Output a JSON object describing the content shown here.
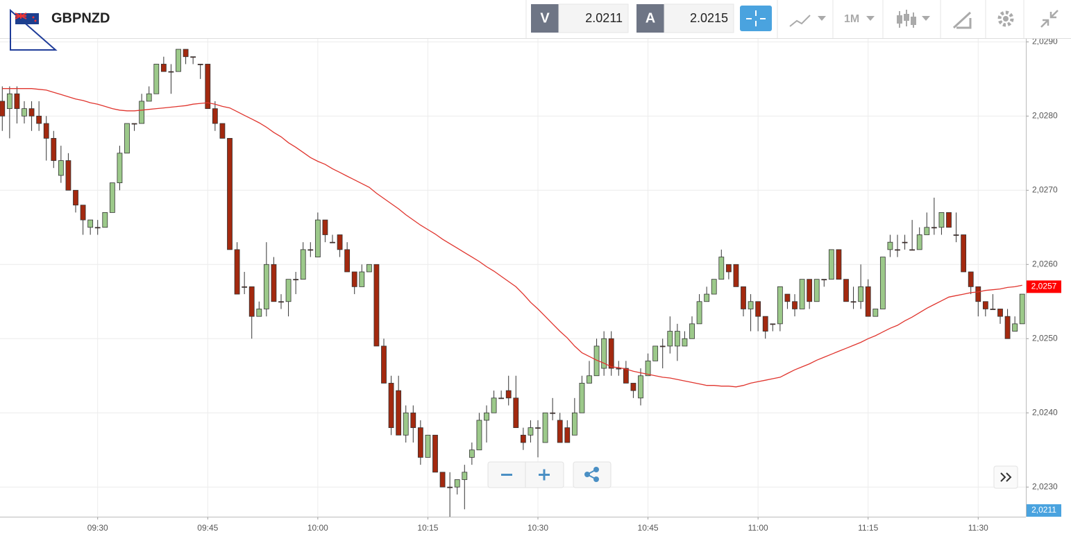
{
  "header": {
    "symbol": "GBPNZD",
    "bid_label": "V",
    "bid": 2.0211,
    "ask_label": "A",
    "ask": 2.0215,
    "timeframe": "1M"
  },
  "chart_data": {
    "type": "candlestick",
    "categories": [
      null,
      null,
      null,
      null,
      null,
      null,
      null,
      null,
      null,
      null,
      null,
      null,
      null,
      "09:30",
      null,
      null,
      null,
      null,
      null,
      null,
      null,
      null,
      null,
      null,
      null,
      null,
      null,
      null,
      "09:45",
      null,
      null,
      null,
      null,
      null,
      null,
      null,
      null,
      null,
      null,
      null,
      null,
      null,
      null,
      "10:00",
      null,
      null,
      null,
      null,
      null,
      null,
      null,
      null,
      null,
      null,
      null,
      null,
      null,
      null,
      "10:15",
      null,
      null,
      null,
      null,
      null,
      null,
      null,
      null,
      null,
      null,
      null,
      null,
      null,
      null,
      "10:30",
      null,
      null,
      null,
      null,
      null,
      null,
      null,
      null,
      null,
      null,
      null,
      null,
      null,
      null,
      "10:45",
      null,
      null,
      null,
      null,
      null,
      null,
      null,
      null,
      null,
      null,
      null,
      null,
      null,
      null,
      "11:00",
      null,
      null,
      null,
      null,
      null,
      null,
      null,
      null,
      null,
      null,
      null,
      null,
      null,
      null,
      "11:15",
      null,
      null,
      null,
      null,
      null,
      null,
      null,
      null,
      null,
      null,
      null,
      null,
      null,
      null,
      "11:30",
      null,
      null,
      null,
      null,
      null,
      null
    ],
    "open": [
      2.0282,
      2.0281,
      2.0283,
      2.028,
      2.0281,
      2.028,
      2.0279,
      2.0277,
      2.0272,
      2.0274,
      2.027,
      2.0268,
      2.0265,
      2.0265,
      2.0265,
      2.0267,
      2.0271,
      2.0275,
      2.0279,
      2.0279,
      2.0282,
      2.0283,
      2.0287,
      2.0286,
      2.0286,
      2.0289,
      2.0288,
      2.0287,
      2.0287,
      2.0281,
      2.0279,
      2.0277,
      2.0262,
      2.0257,
      2.0257,
      2.0253,
      2.0254,
      2.026,
      2.0255,
      2.0255,
      2.0258,
      2.0258,
      2.0262,
      2.0261,
      2.0266,
      2.0263,
      2.0264,
      2.0262,
      2.0259,
      2.0257,
      2.0259,
      2.026,
      2.0249,
      2.0244,
      2.0243,
      2.0237,
      2.024,
      2.0238,
      2.0234,
      2.0237,
      2.0232,
      2.023,
      2.023,
      2.0231,
      2.0234,
      2.0235,
      2.0239,
      2.024,
      2.0242,
      2.0243,
      2.0242,
      2.0237,
      2.0237,
      2.0238,
      2.0236,
      2.024,
      2.0239,
      2.0238,
      2.0237,
      2.024,
      2.0244,
      2.0245,
      2.0246,
      2.025,
      2.0246,
      2.0246,
      2.0244,
      2.0242,
      2.0245,
      2.0247,
      2.0249,
      2.0249,
      2.0249,
      2.0249,
      2.025,
      2.0252,
      2.0255,
      2.0256,
      2.0258,
      2.026,
      2.026,
      2.0257,
      2.0254,
      2.0255,
      2.0253,
      2.0252,
      2.0252,
      2.0256,
      2.0255,
      2.0254,
      2.0258,
      2.0255,
      2.0258,
      2.0258,
      2.0262,
      2.0258,
      2.0255,
      2.0255,
      2.0257,
      2.0253,
      2.0254,
      2.0262,
      2.0262,
      2.0263,
      2.0262,
      2.0262,
      2.0264,
      2.0265,
      2.0265,
      2.0267,
      2.0264,
      2.0264,
      2.0259,
      2.0257,
      2.0255,
      2.0254,
      2.0254,
      2.0253,
      2.0251,
      2.0252
    ],
    "high": [
      2.0284,
      2.0284,
      2.0284,
      2.0282,
      2.0282,
      2.0282,
      2.028,
      2.0278,
      2.0276,
      2.0275,
      2.027,
      2.0268,
      2.0266,
      2.0266,
      2.0267,
      2.0271,
      2.0276,
      2.0279,
      2.0279,
      2.0283,
      2.0284,
      2.0287,
      2.0288,
      2.0287,
      2.0289,
      2.0289,
      2.0288,
      2.0287,
      2.0287,
      2.0282,
      2.0279,
      2.0277,
      2.0263,
      2.0259,
      2.0257,
      2.0255,
      2.0263,
      2.0261,
      2.0256,
      2.0258,
      2.0259,
      2.0263,
      2.0263,
      2.0267,
      2.0266,
      2.0264,
      2.0264,
      2.0263,
      2.0259,
      2.026,
      2.026,
      2.026,
      2.025,
      2.0245,
      2.0245,
      2.0241,
      2.0241,
      2.0239,
      2.0237,
      2.0237,
      2.0232,
      2.0232,
      2.0231,
      2.0233,
      2.0236,
      2.024,
      2.0241,
      2.0243,
      2.0243,
      2.0245,
      2.0245,
      2.0238,
      2.0239,
      2.0239,
      2.024,
      2.0242,
      2.024,
      2.0239,
      2.0242,
      2.0245,
      2.0247,
      2.025,
      2.0251,
      2.0251,
      2.0247,
      2.0247,
      2.0244,
      2.0246,
      2.0248,
      2.0249,
      2.025,
      2.0253,
      2.0252,
      2.0251,
      2.0253,
      2.0256,
      2.0257,
      2.0258,
      2.0262,
      2.026,
      2.026,
      2.0257,
      2.0256,
      2.0255,
      2.0253,
      2.0252,
      2.0257,
      2.0256,
      2.0256,
      2.0258,
      2.0258,
      2.0258,
      2.0258,
      2.0262,
      2.0262,
      2.0258,
      2.0257,
      2.026,
      2.0258,
      2.0254,
      2.0261,
      2.0264,
      2.0264,
      2.0264,
      2.0266,
      2.0265,
      2.0267,
      2.0269,
      2.0267,
      2.0267,
      2.0267,
      2.0264,
      2.0259,
      2.0257,
      2.0255,
      2.0256,
      2.0254,
      2.0254,
      2.0253,
      2.0256
    ],
    "low": [
      2.0278,
      2.0277,
      2.0279,
      2.0279,
      2.0278,
      2.0278,
      2.0274,
      2.0273,
      2.0271,
      2.027,
      2.0267,
      2.0264,
      2.0264,
      2.0264,
      2.0265,
      2.0267,
      2.027,
      2.0275,
      2.0278,
      2.0279,
      2.0282,
      2.0283,
      2.0286,
      2.0283,
      2.0286,
      2.0287,
      2.0287,
      2.0285,
      2.0281,
      2.0278,
      2.0277,
      2.0262,
      2.0256,
      2.0256,
      2.025,
      2.0253,
      2.0253,
      2.0255,
      2.0254,
      2.0253,
      2.0256,
      2.0258,
      2.0261,
      2.0261,
      2.0263,
      2.0263,
      2.0261,
      2.0259,
      2.0256,
      2.0257,
      2.0259,
      2.0249,
      2.0244,
      2.0237,
      2.0237,
      2.0236,
      2.0236,
      2.0233,
      2.0234,
      2.0232,
      2.023,
      2.0226,
      2.0229,
      2.0227,
      2.0233,
      2.0235,
      2.0236,
      2.024,
      2.0242,
      2.0241,
      2.0238,
      2.0235,
      2.0236,
      2.0234,
      2.0236,
      2.0239,
      2.0236,
      2.0236,
      2.0237,
      2.024,
      2.0244,
      2.0245,
      2.0245,
      2.0245,
      2.0245,
      2.0244,
      2.0242,
      2.0241,
      2.0245,
      2.0247,
      2.0246,
      2.0248,
      2.0247,
      2.0249,
      2.025,
      2.0252,
      2.0255,
      2.0256,
      2.0258,
      2.0258,
      2.0257,
      2.0253,
      2.0251,
      2.0251,
      2.025,
      2.0251,
      2.0251,
      2.0254,
      2.0253,
      2.0254,
      2.0254,
      2.0255,
      2.0257,
      2.0258,
      2.0258,
      2.0255,
      2.0254,
      2.0254,
      2.0253,
      2.0253,
      2.0254,
      2.0261,
      2.0261,
      2.0262,
      2.0262,
      2.0262,
      2.0264,
      2.0264,
      2.0264,
      2.0265,
      2.0263,
      2.0259,
      2.0256,
      2.0253,
      2.0253,
      2.0254,
      2.0252,
      2.025,
      2.0251,
      2.0252
    ],
    "close": [
      2.028,
      2.0283,
      2.0281,
      2.0281,
      2.028,
      2.0279,
      2.0277,
      2.0274,
      2.0274,
      2.027,
      2.0268,
      2.0266,
      2.0266,
      2.0265,
      2.0267,
      2.0271,
      2.0275,
      2.0279,
      2.0279,
      2.0282,
      2.0283,
      2.0287,
      2.0286,
      2.0286,
      2.0289,
      2.0288,
      2.0288,
      2.0287,
      2.0281,
      2.0279,
      2.0277,
      2.0262,
      2.0256,
      2.0257,
      2.0253,
      2.0254,
      2.026,
      2.0255,
      2.0255,
      2.0258,
      2.0258,
      2.0262,
      2.0262,
      2.0266,
      2.0264,
      2.0263,
      2.0262,
      2.0259,
      2.0257,
      2.0259,
      2.026,
      2.0249,
      2.0244,
      2.0238,
      2.0237,
      2.024,
      2.0238,
      2.0234,
      2.0237,
      2.0232,
      2.023,
      2.023,
      2.0231,
      2.0232,
      2.0235,
      2.0239,
      2.024,
      2.0242,
      2.0242,
      2.0242,
      2.0238,
      2.0236,
      2.0238,
      2.0238,
      2.024,
      2.024,
      2.0236,
      2.0236,
      2.024,
      2.0244,
      2.0245,
      2.0249,
      2.025,
      2.0246,
      2.0246,
      2.0244,
      2.0243,
      2.0245,
      2.0247,
      2.0249,
      2.0249,
      2.0251,
      2.0251,
      2.025,
      2.0252,
      2.0255,
      2.0256,
      2.0258,
      2.0261,
      2.0259,
      2.0257,
      2.0254,
      2.0255,
      2.0253,
      2.0251,
      2.0252,
      2.0257,
      2.0255,
      2.0254,
      2.0258,
      2.0255,
      2.0258,
      2.0258,
      2.0262,
      2.0258,
      2.0255,
      2.0255,
      2.0257,
      2.0253,
      2.0254,
      2.0261,
      2.0263,
      2.0262,
      2.0263,
      2.0262,
      2.0264,
      2.0265,
      2.0265,
      2.0267,
      2.0265,
      2.0264,
      2.0259,
      2.0257,
      2.0255,
      2.0254,
      2.0254,
      2.0253,
      2.025,
      2.0252,
      2.0256
    ],
    "up_color": "#9cc98a",
    "down_color": "#a3290f",
    "moving_average": {
      "color": "#e0342d",
      "values": [
        2.02837,
        2.02837,
        2.02837,
        2.02837,
        2.02837,
        2.02836,
        2.02835,
        2.02832,
        2.02829,
        2.02826,
        2.02823,
        2.02821,
        2.02818,
        2.02816,
        2.02813,
        2.0281,
        2.02808,
        2.02807,
        2.02807,
        2.02808,
        2.02809,
        2.0281,
        2.02811,
        2.02812,
        2.02813,
        2.02814,
        2.02816,
        2.02817,
        2.02818,
        2.02816,
        2.02813,
        2.02811,
        2.02806,
        2.02801,
        2.02796,
        2.02791,
        2.02785,
        2.02778,
        2.02772,
        2.02764,
        2.02758,
        2.02751,
        2.02744,
        2.02739,
        2.02735,
        2.02729,
        2.02724,
        2.02719,
        2.02714,
        2.02709,
        2.02704,
        2.02696,
        2.02689,
        2.02682,
        2.02675,
        2.02667,
        2.0266,
        2.02653,
        2.02647,
        2.02641,
        2.02634,
        2.02628,
        2.02622,
        2.02616,
        2.0261,
        2.02604,
        2.02597,
        2.02591,
        2.02584,
        2.02577,
        2.0257,
        2.0256,
        2.02549,
        2.0254,
        2.0253,
        2.0252,
        2.0251,
        2.02501,
        2.0249,
        2.02481,
        2.02476,
        2.02471,
        2.02467,
        2.02462,
        2.02461,
        2.02459,
        2.02456,
        2.02454,
        2.02452,
        2.0245,
        2.02448,
        2.02447,
        2.02445,
        2.02443,
        2.02441,
        2.02439,
        2.02437,
        2.02437,
        2.02436,
        2.02436,
        2.02435,
        2.02437,
        2.0244,
        2.02442,
        2.02444,
        2.02446,
        2.02448,
        2.02453,
        2.02458,
        2.02462,
        2.02466,
        2.02471,
        2.02475,
        2.02479,
        2.02483,
        2.02487,
        2.02491,
        2.02495,
        2.025,
        2.02504,
        2.02509,
        2.02514,
        2.02518,
        2.02524,
        2.02529,
        2.02535,
        2.02541,
        2.02546,
        2.02551,
        2.02556,
        2.02558,
        2.0256,
        2.02562,
        2.02563,
        2.02565,
        2.02566,
        2.02567,
        2.02569,
        2.0257,
        2.02572
      ]
    },
    "ylim": [
      2.0226,
      2.02905
    ],
    "yticks": [
      {
        "value": 2.023,
        "label": "2,0230"
      },
      {
        "value": 2.024,
        "label": "2,0240"
      },
      {
        "value": 2.025,
        "label": "2,0250"
      },
      {
        "value": 2.026,
        "label": "2,0260"
      },
      {
        "value": 2.027,
        "label": "2,0270"
      },
      {
        "value": 2.028,
        "label": "2,0280"
      },
      {
        "value": 2.029,
        "label": "2,0290"
      }
    ],
    "grid": true,
    "price_tags": [
      {
        "value": 2.0257,
        "label": "2,0257",
        "color": "#ff0000"
      },
      {
        "value": 2.0211,
        "label": "2,0211",
        "color": "#4aa3df"
      }
    ]
  }
}
